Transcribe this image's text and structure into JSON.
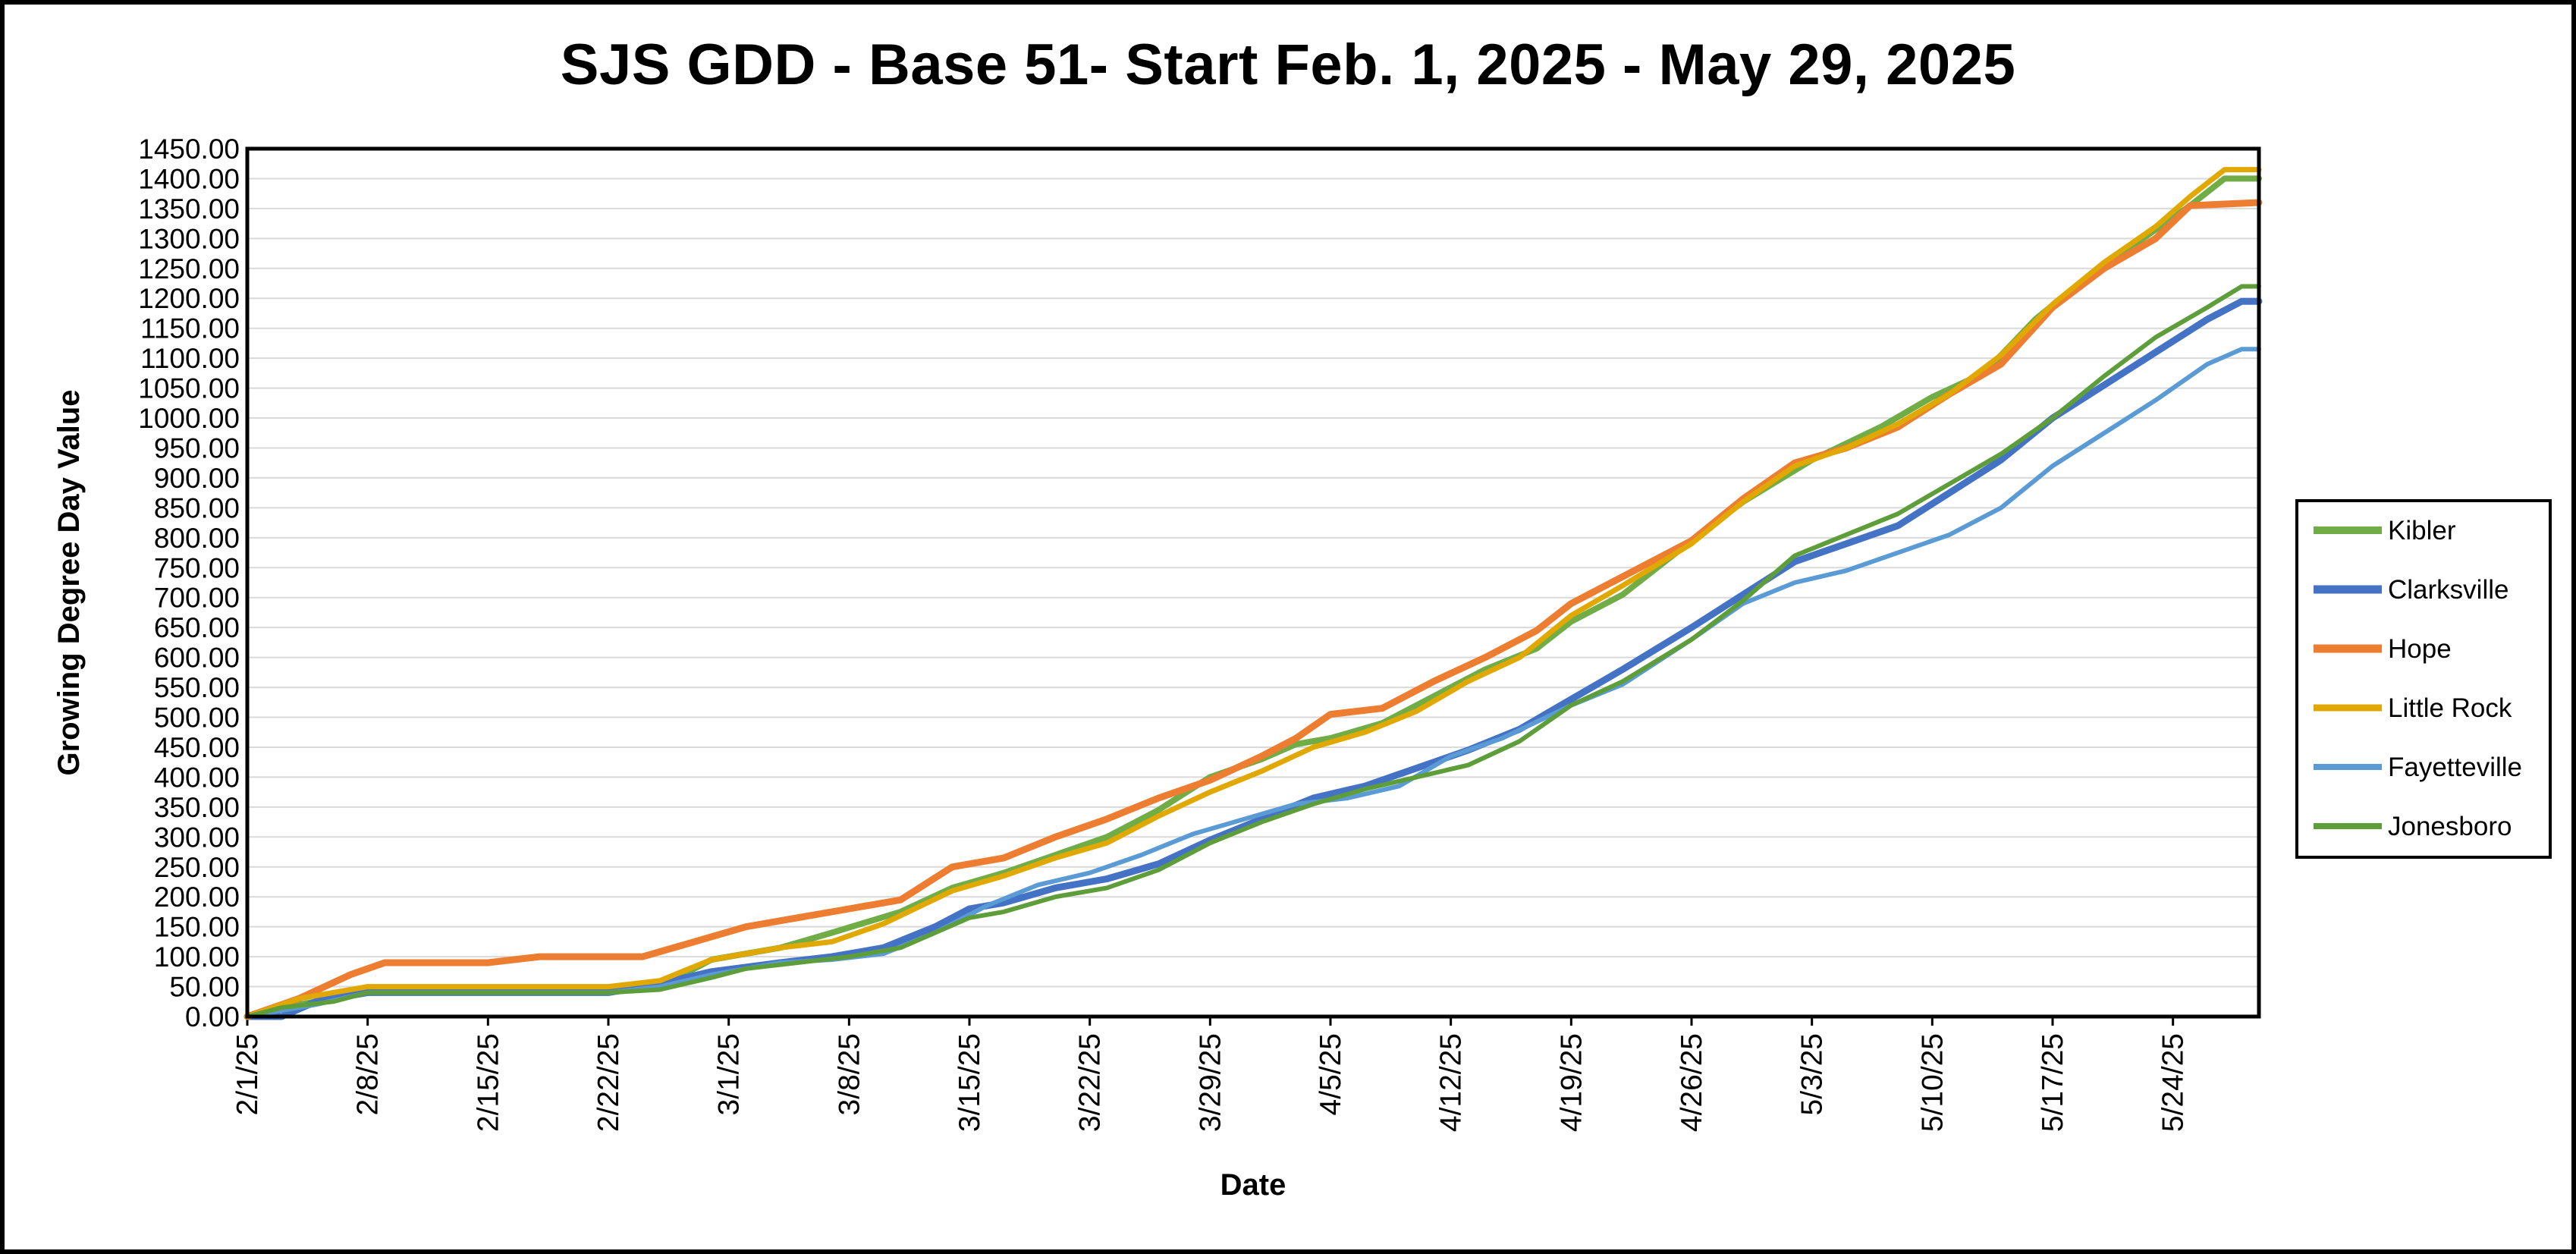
{
  "chart_data": {
    "type": "line",
    "title": "SJS GDD - Base 51- Start Feb. 1, 2025 - May 29, 2025",
    "xlabel": "Date",
    "ylabel": "Growing Degree Day Value",
    "x_range": [
      "2025-02-01",
      "2025-05-29"
    ],
    "ylim": [
      0,
      1450
    ],
    "y_ticks": [
      "0.00",
      "50.00",
      "100.00",
      "150.00",
      "200.00",
      "250.00",
      "300.00",
      "350.00",
      "400.00",
      "450.00",
      "500.00",
      "550.00",
      "600.00",
      "650.00",
      "700.00",
      "750.00",
      "800.00",
      "850.00",
      "900.00",
      "950.00",
      "1000.00",
      "1050.00",
      "1100.00",
      "1150.00",
      "1200.00",
      "1250.00",
      "1300.00",
      "1350.00",
      "1400.00",
      "1450.00"
    ],
    "x_ticks": [
      {
        "date": "2025-02-01",
        "label": "2/1/25"
      },
      {
        "date": "2025-02-08",
        "label": "2/8/25"
      },
      {
        "date": "2025-02-15",
        "label": "2/15/25"
      },
      {
        "date": "2025-02-22",
        "label": "2/22/25"
      },
      {
        "date": "2025-03-01",
        "label": "3/1/25"
      },
      {
        "date": "2025-03-08",
        "label": "3/8/25"
      },
      {
        "date": "2025-03-15",
        "label": "3/15/25"
      },
      {
        "date": "2025-03-22",
        "label": "3/22/25"
      },
      {
        "date": "2025-03-29",
        "label": "3/29/25"
      },
      {
        "date": "2025-04-05",
        "label": "4/5/25"
      },
      {
        "date": "2025-04-12",
        "label": "4/12/25"
      },
      {
        "date": "2025-04-19",
        "label": "4/19/25"
      },
      {
        "date": "2025-04-26",
        "label": "4/26/25"
      },
      {
        "date": "2025-05-03",
        "label": "5/3/25"
      },
      {
        "date": "2025-05-10",
        "label": "5/10/25"
      },
      {
        "date": "2025-05-17",
        "label": "5/17/25"
      },
      {
        "date": "2025-05-24",
        "label": "5/24/25"
      }
    ],
    "grid": "horizontal",
    "legend_position": "right",
    "series": [
      {
        "name": "Kibler",
        "color": "#70AD47",
        "width": 8,
        "points": [
          [
            "2025-02-01",
            0
          ],
          [
            "2025-02-04",
            20
          ],
          [
            "2025-02-08",
            40
          ],
          [
            "2025-02-22",
            40
          ],
          [
            "2025-02-25",
            50
          ],
          [
            "2025-02-28",
            95
          ],
          [
            "2025-03-04",
            115
          ],
          [
            "2025-03-07",
            140
          ],
          [
            "2025-03-11",
            175
          ],
          [
            "2025-03-14",
            215
          ],
          [
            "2025-03-17",
            240
          ],
          [
            "2025-03-20",
            270
          ],
          [
            "2025-03-23",
            300
          ],
          [
            "2025-03-26",
            345
          ],
          [
            "2025-03-29",
            400
          ],
          [
            "2025-04-01",
            430
          ],
          [
            "2025-04-03",
            455
          ],
          [
            "2025-04-05",
            465
          ],
          [
            "2025-04-08",
            490
          ],
          [
            "2025-04-11",
            535
          ],
          [
            "2025-04-14",
            580
          ],
          [
            "2025-04-17",
            615
          ],
          [
            "2025-04-19",
            660
          ],
          [
            "2025-04-22",
            705
          ],
          [
            "2025-04-26",
            795
          ],
          [
            "2025-04-29",
            860
          ],
          [
            "2025-05-03",
            930
          ],
          [
            "2025-05-07",
            985
          ],
          [
            "2025-05-10",
            1035
          ],
          [
            "2025-05-13",
            1075
          ],
          [
            "2025-05-16",
            1165
          ],
          [
            "2025-05-19",
            1235
          ],
          [
            "2025-05-22",
            1295
          ],
          [
            "2025-05-25",
            1355
          ],
          [
            "2025-05-27",
            1400
          ],
          [
            "2025-05-29",
            1400
          ]
        ]
      },
      {
        "name": "Clarksville",
        "color": "#4472C4",
        "width": 9,
        "points": [
          [
            "2025-02-01",
            0
          ],
          [
            "2025-02-03",
            0
          ],
          [
            "2025-02-05",
            25
          ],
          [
            "2025-02-08",
            40
          ],
          [
            "2025-02-22",
            40
          ],
          [
            "2025-02-25",
            55
          ],
          [
            "2025-02-28",
            75
          ],
          [
            "2025-03-04",
            90
          ],
          [
            "2025-03-07",
            100
          ],
          [
            "2025-03-10",
            115
          ],
          [
            "2025-03-13",
            150
          ],
          [
            "2025-03-15",
            180
          ],
          [
            "2025-03-17",
            190
          ],
          [
            "2025-03-20",
            215
          ],
          [
            "2025-03-23",
            230
          ],
          [
            "2025-03-26",
            255
          ],
          [
            "2025-03-29",
            295
          ],
          [
            "2025-04-01",
            330
          ],
          [
            "2025-04-04",
            365
          ],
          [
            "2025-04-07",
            385
          ],
          [
            "2025-04-10",
            415
          ],
          [
            "2025-04-13",
            445
          ],
          [
            "2025-04-16",
            480
          ],
          [
            "2025-04-19",
            530
          ],
          [
            "2025-04-22",
            580
          ],
          [
            "2025-04-26",
            650
          ],
          [
            "2025-04-29",
            705
          ],
          [
            "2025-05-02",
            760
          ],
          [
            "2025-05-05",
            790
          ],
          [
            "2025-05-08",
            820
          ],
          [
            "2025-05-11",
            875
          ],
          [
            "2025-05-14",
            930
          ],
          [
            "2025-05-17",
            1000
          ],
          [
            "2025-05-20",
            1055
          ],
          [
            "2025-05-23",
            1110
          ],
          [
            "2025-05-26",
            1165
          ],
          [
            "2025-05-28",
            1195
          ],
          [
            "2025-05-29",
            1195
          ]
        ]
      },
      {
        "name": "Hope",
        "color": "#ED7D31",
        "width": 9,
        "points": [
          [
            "2025-02-01",
            0
          ],
          [
            "2025-02-04",
            30
          ],
          [
            "2025-02-07",
            70
          ],
          [
            "2025-02-09",
            90
          ],
          [
            "2025-02-15",
            90
          ],
          [
            "2025-02-18",
            100
          ],
          [
            "2025-02-24",
            100
          ],
          [
            "2025-02-27",
            125
          ],
          [
            "2025-03-02",
            150
          ],
          [
            "2025-03-05",
            165
          ],
          [
            "2025-03-08",
            180
          ],
          [
            "2025-03-11",
            195
          ],
          [
            "2025-03-14",
            250
          ],
          [
            "2025-03-17",
            265
          ],
          [
            "2025-03-20",
            300
          ],
          [
            "2025-03-23",
            330
          ],
          [
            "2025-03-26",
            365
          ],
          [
            "2025-03-29",
            395
          ],
          [
            "2025-04-01",
            435
          ],
          [
            "2025-04-03",
            465
          ],
          [
            "2025-04-05",
            505
          ],
          [
            "2025-04-08",
            515
          ],
          [
            "2025-04-11",
            560
          ],
          [
            "2025-04-14",
            600
          ],
          [
            "2025-04-17",
            645
          ],
          [
            "2025-04-19",
            690
          ],
          [
            "2025-04-22",
            735
          ],
          [
            "2025-04-26",
            795
          ],
          [
            "2025-04-29",
            865
          ],
          [
            "2025-05-02",
            925
          ],
          [
            "2025-05-05",
            950
          ],
          [
            "2025-05-08",
            985
          ],
          [
            "2025-05-11",
            1040
          ],
          [
            "2025-05-14",
            1090
          ],
          [
            "2025-05-17",
            1185
          ],
          [
            "2025-05-20",
            1250
          ],
          [
            "2025-05-23",
            1300
          ],
          [
            "2025-05-25",
            1355
          ],
          [
            "2025-05-29",
            1360
          ]
        ]
      },
      {
        "name": "Little Rock",
        "color": "#E0A800",
        "width": 7,
        "points": [
          [
            "2025-02-01",
            0
          ],
          [
            "2025-02-04",
            30
          ],
          [
            "2025-02-08",
            50
          ],
          [
            "2025-02-22",
            50
          ],
          [
            "2025-02-25",
            60
          ],
          [
            "2025-02-28",
            95
          ],
          [
            "2025-03-04",
            115
          ],
          [
            "2025-03-07",
            125
          ],
          [
            "2025-03-10",
            155
          ],
          [
            "2025-03-14",
            210
          ],
          [
            "2025-03-17",
            235
          ],
          [
            "2025-03-20",
            265
          ],
          [
            "2025-03-23",
            290
          ],
          [
            "2025-03-26",
            335
          ],
          [
            "2025-03-29",
            375
          ],
          [
            "2025-04-01",
            410
          ],
          [
            "2025-04-04",
            450
          ],
          [
            "2025-04-07",
            475
          ],
          [
            "2025-04-10",
            510
          ],
          [
            "2025-04-13",
            560
          ],
          [
            "2025-04-16",
            600
          ],
          [
            "2025-04-19",
            670
          ],
          [
            "2025-04-22",
            720
          ],
          [
            "2025-04-26",
            790
          ],
          [
            "2025-04-29",
            860
          ],
          [
            "2025-05-02",
            920
          ],
          [
            "2025-05-05",
            950
          ],
          [
            "2025-05-08",
            990
          ],
          [
            "2025-05-11",
            1040
          ],
          [
            "2025-05-14",
            1105
          ],
          [
            "2025-05-17",
            1190
          ],
          [
            "2025-05-20",
            1260
          ],
          [
            "2025-05-23",
            1320
          ],
          [
            "2025-05-25",
            1370
          ],
          [
            "2025-05-27",
            1415
          ],
          [
            "2025-05-29",
            1415
          ]
        ]
      },
      {
        "name": "Fayetteville",
        "color": "#5B9BD5",
        "width": 6,
        "points": [
          [
            "2025-02-01",
            0
          ],
          [
            "2025-02-03",
            10
          ],
          [
            "2025-02-05",
            20
          ],
          [
            "2025-02-08",
            40
          ],
          [
            "2025-02-22",
            40
          ],
          [
            "2025-02-25",
            50
          ],
          [
            "2025-02-28",
            70
          ],
          [
            "2025-03-04",
            90
          ],
          [
            "2025-03-07",
            95
          ],
          [
            "2025-03-10",
            105
          ],
          [
            "2025-03-13",
            140
          ],
          [
            "2025-03-16",
            185
          ],
          [
            "2025-03-19",
            220
          ],
          [
            "2025-03-22",
            240
          ],
          [
            "2025-03-25",
            270
          ],
          [
            "2025-03-28",
            305
          ],
          [
            "2025-03-31",
            330
          ],
          [
            "2025-04-03",
            355
          ],
          [
            "2025-04-06",
            365
          ],
          [
            "2025-04-09",
            385
          ],
          [
            "2025-04-12",
            435
          ],
          [
            "2025-04-15",
            465
          ],
          [
            "2025-04-19",
            520
          ],
          [
            "2025-04-22",
            555
          ],
          [
            "2025-04-26",
            630
          ],
          [
            "2025-04-29",
            690
          ],
          [
            "2025-05-02",
            725
          ],
          [
            "2025-05-05",
            745
          ],
          [
            "2025-05-08",
            775
          ],
          [
            "2025-05-11",
            805
          ],
          [
            "2025-05-14",
            850
          ],
          [
            "2025-05-17",
            920
          ],
          [
            "2025-05-20",
            975
          ],
          [
            "2025-05-23",
            1030
          ],
          [
            "2025-05-26",
            1090
          ],
          [
            "2025-05-28",
            1115
          ],
          [
            "2025-05-29",
            1115
          ]
        ]
      },
      {
        "name": "Jonesboro",
        "color": "#5E9E3A",
        "width": 6,
        "points": [
          [
            "2025-02-01",
            0
          ],
          [
            "2025-02-03",
            15
          ],
          [
            "2025-02-06",
            25
          ],
          [
            "2025-02-08",
            40
          ],
          [
            "2025-02-22",
            40
          ],
          [
            "2025-02-25",
            45
          ],
          [
            "2025-02-28",
            65
          ],
          [
            "2025-03-02",
            80
          ],
          [
            "2025-03-05",
            90
          ],
          [
            "2025-03-08",
            100
          ],
          [
            "2025-03-11",
            115
          ],
          [
            "2025-03-13",
            140
          ],
          [
            "2025-03-15",
            165
          ],
          [
            "2025-03-17",
            175
          ],
          [
            "2025-03-20",
            200
          ],
          [
            "2025-03-23",
            215
          ],
          [
            "2025-03-26",
            245
          ],
          [
            "2025-03-29",
            290
          ],
          [
            "2025-04-01",
            325
          ],
          [
            "2025-04-04",
            355
          ],
          [
            "2025-04-07",
            380
          ],
          [
            "2025-04-10",
            400
          ],
          [
            "2025-04-13",
            420
          ],
          [
            "2025-04-16",
            460
          ],
          [
            "2025-04-19",
            520
          ],
          [
            "2025-04-22",
            560
          ],
          [
            "2025-04-26",
            630
          ],
          [
            "2025-04-29",
            695
          ],
          [
            "2025-05-02",
            770
          ],
          [
            "2025-05-05",
            805
          ],
          [
            "2025-05-08",
            840
          ],
          [
            "2025-05-11",
            890
          ],
          [
            "2025-05-14",
            940
          ],
          [
            "2025-05-17",
            1000
          ],
          [
            "2025-05-20",
            1070
          ],
          [
            "2025-05-23",
            1135
          ],
          [
            "2025-05-26",
            1185
          ],
          [
            "2025-05-28",
            1220
          ],
          [
            "2025-05-29",
            1220
          ]
        ]
      }
    ]
  }
}
